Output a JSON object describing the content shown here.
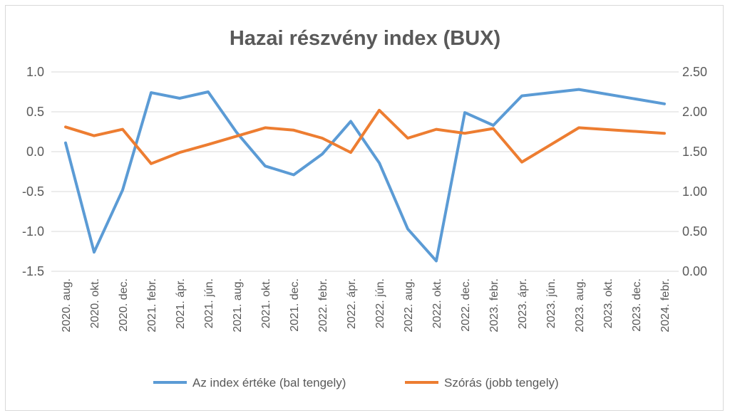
{
  "chart_data": {
    "type": "line",
    "title": "Hazai részvény index (BUX)",
    "categories": [
      "2020. aug.",
      "2020. okt.",
      "2020. dec.",
      "2021. febr.",
      "2021. ápr.",
      "2021. jún.",
      "2021. aug.",
      "2021. okt.",
      "2021. dec.",
      "2022. febr.",
      "2022. ápr.",
      "2022. jún.",
      "2022. aug.",
      "2022. okt.",
      "2022. dec.",
      "2023. febr.",
      "2023. ápr.",
      "2023. jún.",
      "2023. aug.",
      "2023. okt.",
      "2023. dec.",
      "2024. febr."
    ],
    "left_axis": {
      "min": -1.5,
      "max": 1.0,
      "step": 0.5,
      "tick_labels": [
        "1.0",
        "0.5",
        "0.0",
        "-0.5",
        "-1.0",
        "-1.5"
      ]
    },
    "right_axis": {
      "min": 0.0,
      "max": 2.5,
      "step": 0.5,
      "tick_labels": [
        "2.50",
        "2.00",
        "1.50",
        "1.00",
        "0.50",
        "0.00"
      ]
    },
    "grid": true,
    "legend_position": "bottom",
    "series": [
      {
        "name": "Az index értéke (bal tengely)",
        "axis": "left",
        "color": "#5b9bd5",
        "points": [
          {
            "i": 0,
            "v": 0.11
          },
          {
            "i": 1,
            "v": -1.26
          },
          {
            "i": 2,
            "v": -0.48
          },
          {
            "i": 3,
            "v": 0.74
          },
          {
            "i": 4,
            "v": 0.67
          },
          {
            "i": 5,
            "v": 0.75
          },
          {
            "i": 6,
            "v": 0.24
          },
          {
            "i": 7,
            "v": -0.18
          },
          {
            "i": 8,
            "v": -0.29
          },
          {
            "i": 9,
            "v": -0.03
          },
          {
            "i": 10,
            "v": 0.38
          },
          {
            "i": 11,
            "v": -0.14
          },
          {
            "i": 12,
            "v": -0.97
          },
          {
            "i": 13,
            "v": -1.37
          },
          {
            "i": 14,
            "v": 0.49
          },
          {
            "i": 15,
            "v": 0.33
          },
          {
            "i": 16,
            "v": 0.7
          },
          {
            "i": 18,
            "v": 0.78
          },
          {
            "i": 21,
            "v": 0.6
          }
        ]
      },
      {
        "name": "Szórás (jobb tengely)",
        "axis": "right",
        "color": "#ed7d31",
        "points": [
          {
            "i": 0,
            "v": 1.81
          },
          {
            "i": 1,
            "v": 1.7
          },
          {
            "i": 2,
            "v": 1.78
          },
          {
            "i": 3,
            "v": 1.35
          },
          {
            "i": 4,
            "v": 1.49
          },
          {
            "i": 5,
            "v": 1.59
          },
          {
            "i": 7,
            "v": 1.8
          },
          {
            "i": 8,
            "v": 1.77
          },
          {
            "i": 9,
            "v": 1.67
          },
          {
            "i": 10,
            "v": 1.49
          },
          {
            "i": 11,
            "v": 2.02
          },
          {
            "i": 12,
            "v": 1.67
          },
          {
            "i": 13,
            "v": 1.78
          },
          {
            "i": 14,
            "v": 1.73
          },
          {
            "i": 15,
            "v": 1.79
          },
          {
            "i": 16,
            "v": 1.37
          },
          {
            "i": 18,
            "v": 1.8
          },
          {
            "i": 21,
            "v": 1.73
          }
        ]
      }
    ]
  }
}
